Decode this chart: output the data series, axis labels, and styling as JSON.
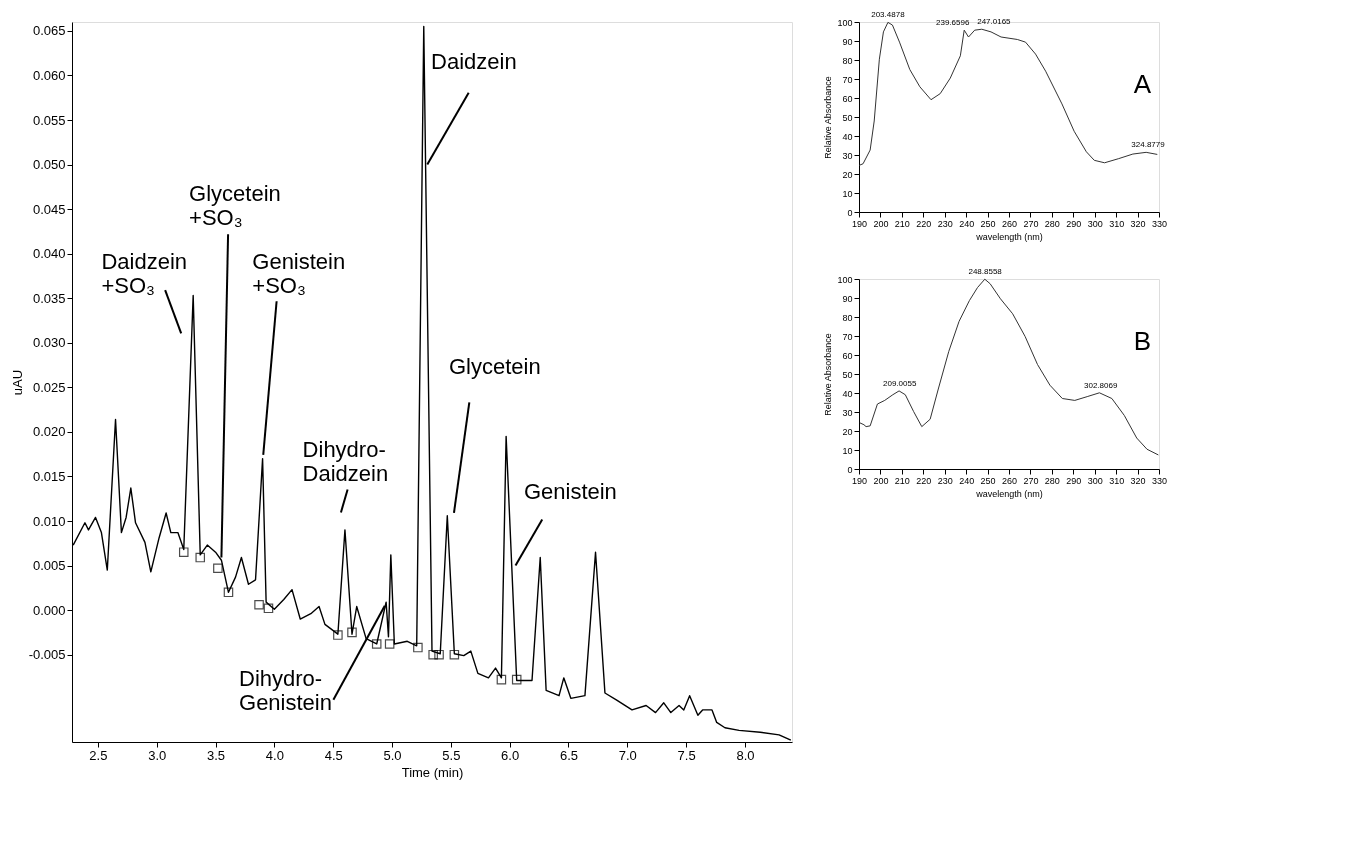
{
  "chart_data": [
    {
      "type": "line",
      "xlabel": "Time (min)",
      "ylabel": "uAU",
      "xlim": [
        2.28,
        8.4
      ],
      "ylim": [
        -0.0148,
        0.066
      ],
      "xticks": [
        2.5,
        {
          "value": 3,
          "label": "3.0"
        },
        3.5,
        {
          "value": 4,
          "label": "4.0"
        },
        4.5,
        {
          "value": 5,
          "label": "5.0"
        },
        5.5,
        {
          "value": 6,
          "label": "6.0"
        },
        6.5,
        {
          "value": 7,
          "label": "7.0"
        },
        7.5,
        {
          "value": 8,
          "label": "8.0"
        }
      ],
      "yticks": [
        -0.005,
        {
          "value": 0,
          "label": "0.000"
        },
        0.005,
        {
          "value": 0.01,
          "label": "0.010"
        },
        0.015,
        {
          "value": 0.02,
          "label": "0.020"
        },
        0.025,
        {
          "value": 0.03,
          "label": "0.030"
        },
        0.035,
        {
          "value": 0.04,
          "label": "0.040"
        },
        0.045,
        {
          "value": 0.05,
          "label": "0.050"
        },
        0.055,
        {
          "value": 0.06,
          "label": "0.060"
        },
        0.065
      ],
      "grid": false,
      "series": [
        {
          "color": "#000000",
          "line_style": "solid",
          "x": [
            2.29,
            2.39,
            2.42,
            2.48,
            2.53,
            2.58,
            2.65,
            2.7,
            2.74,
            2.78,
            2.82,
            2.9,
            2.95,
            3.02,
            3.08,
            3.12,
            3.18,
            3.23,
            3.31,
            3.37,
            3.43,
            3.5,
            3.55,
            3.61,
            3.67,
            3.72,
            3.78,
            3.84,
            3.9,
            3.93,
            4.0,
            4.08,
            4.15,
            4.22,
            4.31,
            4.38,
            4.43,
            4.54,
            4.6,
            4.66,
            4.7,
            4.78,
            4.87,
            4.95,
            4.97,
            4.99,
            5.02,
            5.13,
            5.21,
            5.27,
            5.34,
            5.41,
            5.47,
            5.53,
            5.61,
            5.67,
            5.73,
            5.82,
            5.88,
            5.93,
            5.97,
            6.06,
            6.19,
            6.26,
            6.31,
            6.42,
            6.46,
            6.52,
            6.64,
            6.73,
            6.81,
            6.91,
            7.04,
            7.16,
            7.24,
            7.31,
            7.37,
            7.44,
            7.48,
            7.53,
            7.6,
            7.64,
            7.72,
            7.76,
            7.83,
            7.95,
            8.13,
            8.29,
            8.39
          ],
          "values": [
            0.0073,
            0.0098,
            0.009,
            0.0104,
            0.0087,
            0.0045,
            0.0214,
            0.0087,
            0.0104,
            0.0137,
            0.0098,
            0.0076,
            0.0043,
            0.0081,
            0.0109,
            0.0087,
            0.0087,
            0.0068,
            0.0353,
            0.0062,
            0.0073,
            0.0065,
            0.0056,
            0.002,
            0.0037,
            0.0059,
            0.0029,
            0.0034,
            0.017,
            0.0009,
            0.0001,
            0.0012,
            0.0023,
            -0.001,
            -0.0004,
            0.0004,
            -0.0016,
            -0.0027,
            0.009,
            -0.0027,
            0.0004,
            -0.0032,
            -0.0038,
            0.0009,
            -0.003,
            0.0062,
            -0.0038,
            -0.0035,
            -0.004,
            0.0655,
            -0.0046,
            -0.0049,
            0.0106,
            -0.0049,
            -0.0051,
            -0.0046,
            -0.0071,
            -0.0076,
            -0.0065,
            -0.0076,
            0.0195,
            -0.0079,
            -0.0079,
            0.0059,
            -0.009,
            -0.0096,
            -0.0076,
            -0.0099,
            -0.0096,
            0.0065,
            -0.0093,
            -0.0101,
            -0.0112,
            -0.0107,
            -0.0115,
            -0.0104,
            -0.0115,
            -0.0107,
            -0.0112,
            -0.0096,
            -0.0118,
            -0.0112,
            -0.0112,
            -0.0126,
            -0.0132,
            -0.0135,
            -0.0137,
            -0.014,
            -0.0146
          ]
        },
        {
          "type": "scatter",
          "marker": "square",
          "color": "#000000",
          "x": [
            3.23,
            3.37,
            3.52,
            3.61,
            3.87,
            3.95,
            4.54,
            4.66,
            4.87,
            4.98,
            5.22,
            5.35,
            5.4,
            5.53,
            5.93,
            6.06
          ],
          "values": [
            0.0065,
            0.0059,
            0.0047,
            0.002,
            0.0006,
            0.0002,
            -0.0028,
            -0.0025,
            -0.0038,
            -0.0038,
            -0.0042,
            -0.005,
            -0.005,
            -0.005,
            -0.0078,
            -0.0078
          ]
        }
      ],
      "annotations": [
        {
          "text": "Daidzein\n+SO₃",
          "x": 3.31,
          "y": 0.0353
        },
        {
          "text": "Glycetein\n+SO₃",
          "x": 3.55,
          "y": 0.0056
        },
        {
          "text": "Genistein\n+SO₃",
          "x": 3.9,
          "y": 0.017
        },
        {
          "text": "Dihydro-\nDaidzein",
          "x": 4.6,
          "y": 0.009
        },
        {
          "text": "Daidzein",
          "x": 5.3,
          "y": 0.05
        },
        {
          "text": "Glycetein",
          "x": 5.47,
          "y": 0.0106
        },
        {
          "text": "Genistein",
          "x": 6.05,
          "y": 0.005
        },
        {
          "text": "Dihydro-\nGenistein",
          "x": 4.95,
          "y": 0.0009
        }
      ]
    },
    {
      "type": "line",
      "xlabel": "wavelength (nm)",
      "ylabel": "Relative Absorbance",
      "xlim": [
        190,
        330
      ],
      "ylim": [
        0,
        100
      ],
      "xticks": [
        190,
        200,
        210,
        220,
        230,
        240,
        250,
        260,
        270,
        280,
        290,
        300,
        310,
        320,
        330
      ],
      "yticks": [
        0,
        10,
        20,
        30,
        40,
        50,
        60,
        70,
        80,
        90,
        100
      ],
      "grid": false,
      "series": [
        {
          "color": "#333333",
          "line_style": "solid",
          "x": [
            190,
            191.9,
            195.2,
            197.1,
            199.5,
            201.4,
            203.5,
            205.6,
            208.9,
            213.7,
            218.4,
            223.6,
            227.9,
            232.6,
            237.3,
            239.1,
            241.1,
            244,
            247.3,
            251.6,
            256.3,
            263.9,
            267.7,
            272.4,
            277.1,
            284.7,
            290.4,
            296.1,
            299.8,
            304.6,
            311.2,
            317.8,
            324,
            329.2
          ],
          "values": [
            24.5,
            25.4,
            32.6,
            47.9,
            80.4,
            94.8,
            99.8,
            98.4,
            89.4,
            75,
            65.9,
            59.1,
            62.3,
            70.5,
            82.2,
            95.7,
            92.1,
            95.7,
            96.2,
            94.8,
            92.1,
            90.8,
            89.4,
            83.1,
            74.1,
            56.9,
            42.5,
            31.7,
            27.2,
            25.9,
            28.1,
            30.5,
            31.4,
            30.3
          ]
        }
      ],
      "annotations": [
        {
          "text": "203.4878",
          "x": 203.49,
          "y": 100
        },
        {
          "text": "239.6596",
          "x": 239.66,
          "y": 96
        },
        {
          "text": "247.0165",
          "x": 247.02,
          "y": 96.5
        },
        {
          "text": "324.8779",
          "x": 324.88,
          "y": 31.5
        },
        "A"
      ]
    },
    {
      "type": "line",
      "xlabel": "wavelength (nm)",
      "ylabel": "Relative Absorbance",
      "xlim": [
        190,
        330
      ],
      "ylim": [
        0,
        100
      ],
      "xticks": [
        190,
        200,
        210,
        220,
        230,
        240,
        250,
        260,
        270,
        280,
        290,
        300,
        310,
        320,
        330
      ],
      "yticks": [
        0,
        10,
        20,
        30,
        40,
        50,
        60,
        70,
        80,
        90,
        100
      ],
      "grid": false,
      "series": [
        {
          "color": "#333333",
          "line_style": "solid",
          "x": [
            190.4,
            192.3,
            193.3,
            195.2,
            198.6,
            202,
            205.8,
            208.7,
            211.6,
            215.5,
            219.3,
            223.2,
            227,
            231.9,
            236.7,
            241.5,
            245.3,
            248.7,
            251.2,
            256,
            261.7,
            267.5,
            273.3,
            279.1,
            284.9,
            290.7,
            296.5,
            302.2,
            308,
            313.8,
            319.6,
            324.4,
            329.7
          ],
          "values": [
            24.3,
            23.3,
            22.3,
            22.7,
            34.2,
            36.1,
            39.1,
            41.1,
            39.1,
            30.2,
            22.3,
            26.2,
            42.1,
            61.9,
            77.7,
            88.6,
            95.5,
            99.9,
            97.5,
            89.6,
            81.7,
            69.8,
            55,
            44.1,
            37.1,
            36.1,
            38.1,
            40.1,
            37.1,
            28.2,
            16.3,
            10.4,
            7.4
          ]
        }
      ],
      "annotations": [
        {
          "text": "209.0055",
          "x": 209.01,
          "y": 41.1
        },
        {
          "text": "248.8558",
          "x": 248.86,
          "y": 100
        },
        {
          "text": "302.8069",
          "x": 302.81,
          "y": 40.1
        },
        "B"
      ]
    }
  ]
}
